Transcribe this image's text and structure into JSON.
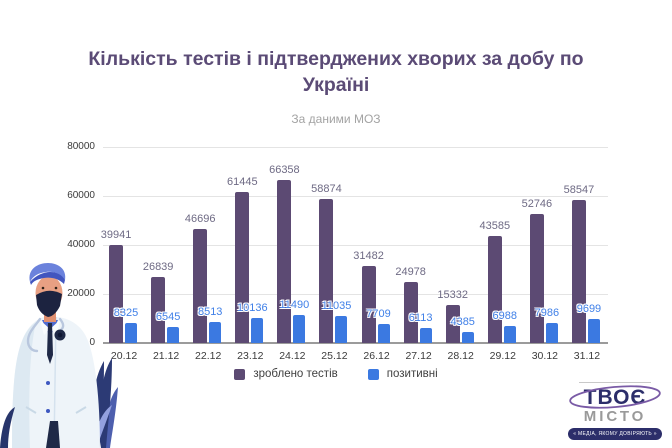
{
  "header": {
    "title": "Кількість тестів і підтверджених хворих за добу по Україні",
    "subtitle": "За даними МОЗ"
  },
  "chart_data": {
    "type": "bar",
    "title": "Кількість тестів і підтверджених хворих за добу по Україні",
    "subtitle": "За даними МОЗ",
    "categories": [
      "20.12",
      "21.12",
      "22.12",
      "23.12",
      "24.12",
      "25.12",
      "26.12",
      "27.12",
      "28.12",
      "29.12",
      "30.12",
      "31.12"
    ],
    "series": [
      {
        "name": "зроблено тестів",
        "color": "#5c4a73",
        "label_color": "#6e6a84",
        "values": [
          39941,
          26839,
          46696,
          61445,
          66358,
          58874,
          31482,
          24978,
          15332,
          43585,
          52746,
          58547
        ]
      },
      {
        "name": "позитивні",
        "color": "#3b79e1",
        "label_color": "#4080e8",
        "values": [
          8325,
          6545,
          8513,
          10136,
          11490,
          11035,
          7709,
          6113,
          4385,
          6988,
          7986,
          9699
        ]
      }
    ],
    "y_ticks": [
      0,
      20000,
      40000,
      60000,
      80000
    ],
    "ylim": [
      0,
      80000
    ],
    "grid": true,
    "legend_position": "bottom",
    "colors": {
      "grid": "#e4e4e4",
      "axis": "#9b9b9b",
      "title": "#5b4b76",
      "subtitle": "#a3a3a3",
      "tick_text": "#3b3b3b"
    }
  },
  "branding": {
    "logo_line1": "ТВОЄ",
    "logo_line2": "МІСТО",
    "tagline": "« МЕДІА, ЯКОМУ ДОВІРЯЮТЬ »"
  },
  "illustration": {
    "name": "masked-doctor-with-plant-illustration"
  }
}
